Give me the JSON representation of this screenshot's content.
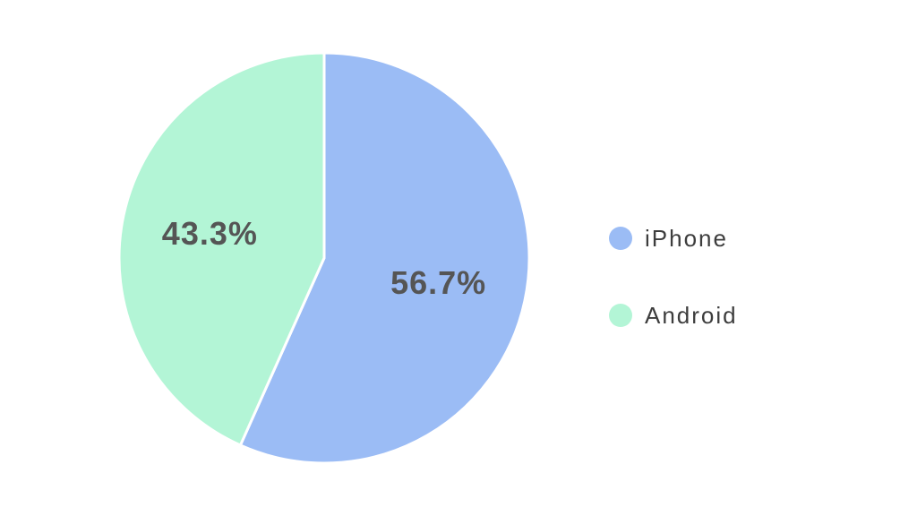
{
  "chart_data": {
    "type": "pie",
    "title": "",
    "slices": [
      {
        "label": "iPhone",
        "value": 56.7,
        "display": "56.7%",
        "color": "#9bbcf5"
      },
      {
        "label": "Android",
        "value": 43.3,
        "display": "43.3%",
        "color": "#b3f5d6"
      }
    ],
    "start_angle": "top (12 o'clock), clockwise",
    "legend": {
      "placement": "right",
      "items": [
        "iPhone",
        "Android"
      ]
    }
  },
  "colors": {
    "background": "#ffffff",
    "label_text": "#555555",
    "legend_text": "#3d3d3d",
    "slice_border": "#ffffff"
  }
}
